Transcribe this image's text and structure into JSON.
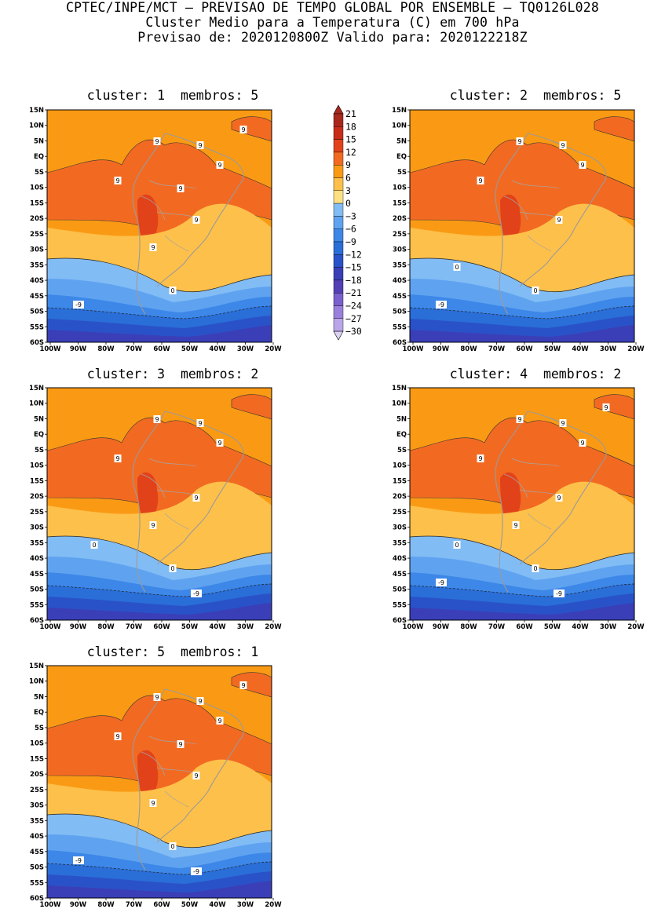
{
  "header": {
    "line1": "CPTEC/INPE/MCT – PREVISAO DE TEMPO GLOBAL POR ENSEMBLE – TQ0126L028",
    "line2": "Cluster Medio para a Temperatura (C) em 700 hPa",
    "line3": "Previsao de: 2020120800Z   Valido para: 2020122218Z"
  },
  "axes": {
    "lat_labels": [
      "15N",
      "10N",
      "5N",
      "EQ",
      "5S",
      "10S",
      "15S",
      "20S",
      "25S",
      "30S",
      "35S",
      "40S",
      "45S",
      "50S",
      "55S",
      "60S"
    ],
    "lon_labels": [
      "100W",
      "90W",
      "80W",
      "70W",
      "60W",
      "50W",
      "40W",
      "30W",
      "20W"
    ]
  },
  "colorbar": {
    "labels": [
      "21",
      "18",
      "15",
      "12",
      "9",
      "6",
      "3",
      "0",
      "-3",
      "-6",
      "-9",
      "-12",
      "-15",
      "-18",
      "-21",
      "-24",
      "-27",
      "-30"
    ],
    "colors": {
      "ge18": "#a8281e",
      "15_18": "#c82d1a",
      "12_15": "#e2421a",
      "9_12": "#f26a22",
      "6_9": "#fa9a14",
      "3_6": "#fdc04a",
      "0_3": "#fde083",
      "m3_0": "#82bcf5",
      "m6_m3": "#5fa3f0",
      "m9_m6": "#3d87e8",
      "m12_m9": "#2a6ed8",
      "m15_m12": "#2a52c8",
      "m18_m15": "#3a3fb8",
      "m21_m18": "#5440b5",
      "m24_m21": "#7a5fce",
      "m27_m24": "#9a80dc",
      "m30_m27": "#baa6e8",
      "lt_m30": "#ddd2f4"
    }
  },
  "panels": [
    {
      "cluster_label": "cluster:",
      "cluster": "1",
      "members_label": "membros:",
      "members": "5",
      "contour_labels": [
        "9",
        "9",
        "9",
        "9",
        "9",
        "9",
        "9",
        "9",
        "0",
        "-9"
      ]
    },
    {
      "cluster_label": "cluster:",
      "cluster": "2",
      "members_label": "membros:",
      "members": "5",
      "contour_labels": [
        "9",
        "9",
        "9",
        "9",
        "9",
        "0",
        "0",
        "-9"
      ]
    },
    {
      "cluster_label": "cluster:",
      "cluster": "3",
      "members_label": "membros:",
      "members": "2",
      "contour_labels": [
        "9",
        "9",
        "9",
        "9",
        "9",
        "9",
        "0",
        "0",
        "-9"
      ]
    },
    {
      "cluster_label": "cluster:",
      "cluster": "4",
      "members_label": "membros:",
      "members": "2",
      "contour_labels": [
        "9",
        "9",
        "9",
        "9",
        "9",
        "9",
        "9",
        "0",
        "0",
        "-9",
        "-9"
      ]
    },
    {
      "cluster_label": "cluster:",
      "cluster": "5",
      "members_label": "membros:",
      "members": "1",
      "contour_labels": [
        "9",
        "9",
        "9",
        "9",
        "9",
        "9",
        "9",
        "9",
        "0",
        "-9",
        "-9"
      ]
    }
  ]
}
